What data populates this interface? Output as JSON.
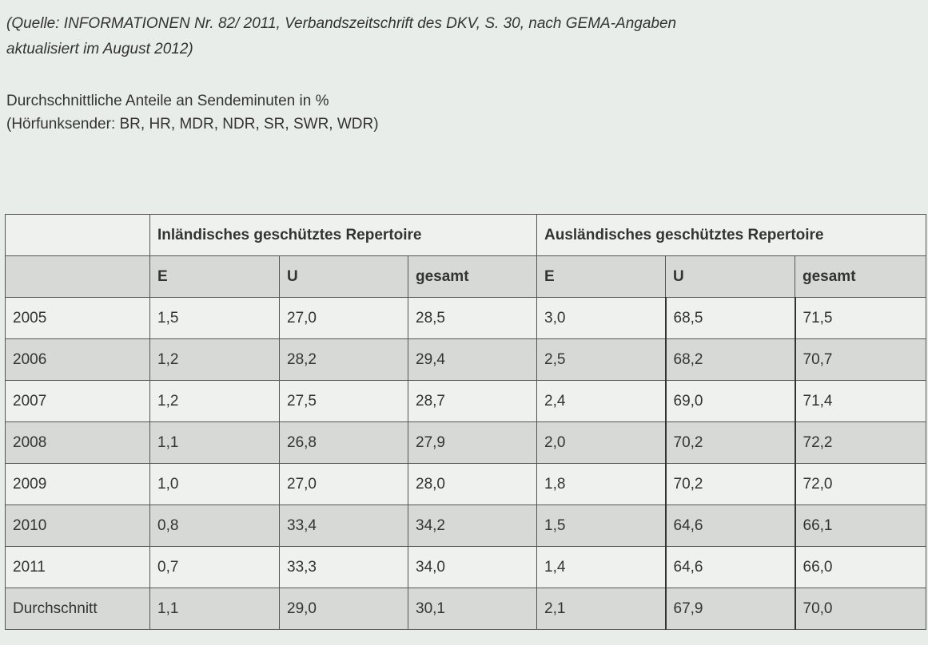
{
  "source_note": {
    "line1": "(Quelle: INFORMATIONEN Nr. 82/ 2011, Verbandszeitschrift des DKV, S. 30, nach GEMA-Angaben",
    "line2": "aktualisiert im August 2012)"
  },
  "caption": {
    "line1": "Durchschnittliche Anteile an Sendeminuten in %",
    "line2": "(Hörfunksender: BR, HR, MDR, NDR, SR, SWR, WDR)"
  },
  "table": {
    "group_headers": {
      "blank": "",
      "domestic": "Inländisches geschütztes Repertoire",
      "foreign": "Ausländisches geschütztes Repertoire"
    },
    "sub_headers": [
      "",
      "E",
      "U",
      "gesamt",
      "E",
      "U",
      "gesamt"
    ],
    "rows": [
      [
        "2005",
        "1,5",
        "27,0",
        "28,5",
        "3,0",
        "68,5",
        "71,5"
      ],
      [
        "2006",
        "1,2",
        "28,2",
        "29,4",
        "2,5",
        "68,2",
        "70,7"
      ],
      [
        "2007",
        "1,2",
        "27,5",
        "28,7",
        "2,4",
        "69,0",
        "71,4"
      ],
      [
        "2008",
        "1,1",
        "26,8",
        "27,9",
        "2,0",
        "70,2",
        "72,2"
      ],
      [
        "2009",
        "1,0",
        "27,0",
        "28,0",
        "1,8",
        "70,2",
        "72,0"
      ],
      [
        "2010",
        "0,8",
        "33,4",
        "34,2",
        "1,5",
        "64,6",
        "66,1"
      ],
      [
        "2011",
        "0,7",
        "33,3",
        "34,0",
        "1,4",
        "64,6",
        "66,0"
      ],
      [
        "Durchschnitt",
        "1,1",
        "29,0",
        "30,1",
        "2,1",
        "67,9",
        "70,0"
      ]
    ]
  }
}
